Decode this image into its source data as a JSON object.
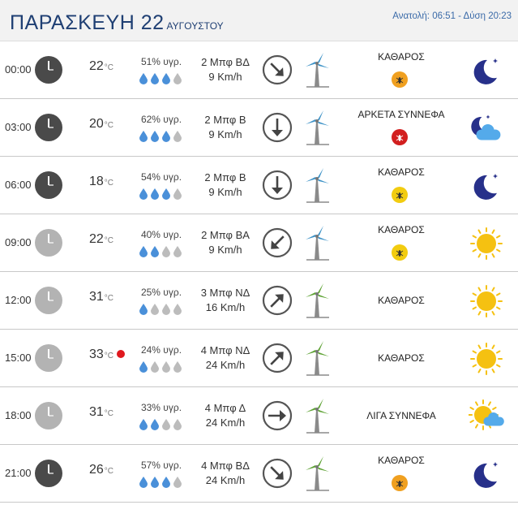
{
  "header": {
    "day": "ΠΑΡΑΣΚΕΥΗ 22",
    "month": "ΑΥΓΟΥΣΤΟΥ",
    "sun_times": "Ανατολή: 06:51  - Δύση 20:23"
  },
  "colors": {
    "title": "#1f3f73",
    "clock_night": "#4a4a4a",
    "clock_day": "#b3b3b3",
    "drop_filled": "#4a90d9",
    "drop_empty": "#bcbcbc",
    "turbine_blue": "#3f93c7",
    "turbine_green": "#5fa336",
    "moon": "#27308a",
    "sun": "#f5c111",
    "badge_orange": "#f0a020",
    "badge_red": "#d21f1f",
    "badge_yellow": "#f2cc10",
    "hot_dot": "#e0181e"
  },
  "rows": [
    {
      "time": "00:00",
      "clock": "night",
      "temp": "22",
      "unit": "°C",
      "humidity": "51% υγρ.",
      "drops": 3,
      "wind_bft": "2 Μπφ ΒΔ",
      "wind_kmh": "9 Km/h",
      "arrow_icon": "arrow-down-right-icon",
      "turbine": "blue",
      "condition": "ΚΑΘΑΡΟΣ",
      "badge": "orange",
      "weather_icon": "moon-icon",
      "hot": false
    },
    {
      "time": "03:00",
      "clock": "night",
      "temp": "20",
      "unit": "°C",
      "humidity": "62% υγρ.",
      "drops": 3,
      "wind_bft": "2 Μπφ Β",
      "wind_kmh": "9 Km/h",
      "arrow_icon": "arrow-down-icon",
      "turbine": "blue",
      "condition": "ΑΡΚΕΤΑ ΣΥΝΝΕΦΑ",
      "badge": "red",
      "weather_icon": "moon-cloud-icon",
      "hot": false
    },
    {
      "time": "06:00",
      "clock": "night",
      "temp": "18",
      "unit": "°C",
      "humidity": "54% υγρ.",
      "drops": 3,
      "wind_bft": "2 Μπφ Β",
      "wind_kmh": "9 Km/h",
      "arrow_icon": "arrow-down-icon",
      "turbine": "blue",
      "condition": "ΚΑΘΑΡΟΣ",
      "badge": "yellow",
      "weather_icon": "moon-icon",
      "hot": false
    },
    {
      "time": "09:00",
      "clock": "day",
      "temp": "22",
      "unit": "°C",
      "humidity": "40% υγρ.",
      "drops": 2,
      "wind_bft": "2 Μπφ ΒΑ",
      "wind_kmh": "9 Km/h",
      "arrow_icon": "arrow-down-left-icon",
      "turbine": "blue",
      "condition": "ΚΑΘΑΡΟΣ",
      "badge": "yellow",
      "weather_icon": "sun-icon",
      "hot": false
    },
    {
      "time": "12:00",
      "clock": "day",
      "temp": "31",
      "unit": "°C",
      "humidity": "25% υγρ.",
      "drops": 1,
      "wind_bft": "3 Μπφ ΝΔ",
      "wind_kmh": "16 Km/h",
      "arrow_icon": "arrow-up-right-icon",
      "turbine": "green",
      "condition": "ΚΑΘΑΡΟΣ",
      "badge": "none",
      "weather_icon": "sun-icon",
      "hot": false
    },
    {
      "time": "15:00",
      "clock": "day",
      "temp": "33",
      "unit": "°C",
      "humidity": "24% υγρ.",
      "drops": 1,
      "wind_bft": "4 Μπφ ΝΔ",
      "wind_kmh": "24 Km/h",
      "arrow_icon": "arrow-up-right-icon",
      "turbine": "green",
      "condition": "ΚΑΘΑΡΟΣ",
      "badge": "none",
      "weather_icon": "sun-icon",
      "hot": true
    },
    {
      "time": "18:00",
      "clock": "day",
      "temp": "31",
      "unit": "°C",
      "humidity": "33% υγρ.",
      "drops": 2,
      "wind_bft": "4 Μπφ Δ",
      "wind_kmh": "24 Km/h",
      "arrow_icon": "arrow-right-icon",
      "turbine": "green",
      "condition": "ΛΙΓΑ ΣΥΝΝΕΦΑ",
      "badge": "none",
      "weather_icon": "sun-cloud-icon",
      "hot": false
    },
    {
      "time": "21:00",
      "clock": "night",
      "temp": "26",
      "unit": "°C",
      "humidity": "57% υγρ.",
      "drops": 3,
      "wind_bft": "4 Μπφ ΒΔ",
      "wind_kmh": "24 Km/h",
      "arrow_icon": "arrow-down-right-icon",
      "turbine": "green",
      "condition": "ΚΑΘΑΡΟΣ",
      "badge": "orange",
      "weather_icon": "moon-icon",
      "hot": false
    }
  ]
}
